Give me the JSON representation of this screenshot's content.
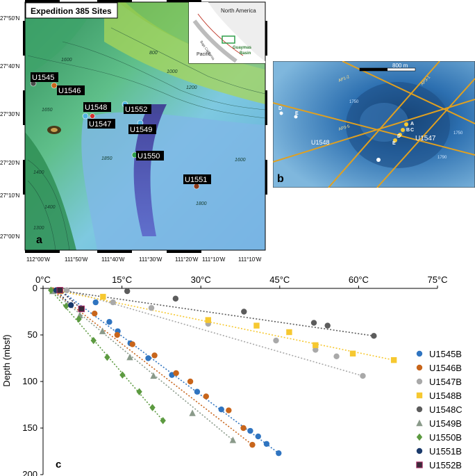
{
  "map_a": {
    "title": "Expedition 385 Sites",
    "panel_label": "a",
    "inset": {
      "region_label": "North America",
      "ocean_label": "Pacific",
      "basin_label_line1": "Guaymas",
      "basin_label_line2": "Basin",
      "state_label": "Baja California"
    },
    "lat_labels": [
      "27°50'N",
      "27°40'N",
      "27°30'N",
      "27°20'N",
      "27°10'N",
      "27°00'N"
    ],
    "lon_labels": [
      "112°00'W",
      "111°50'W",
      "111°40'W",
      "111°30'W",
      "111°20'W",
      "111°10'W",
      "111°10'W"
    ],
    "contour_labels": [
      "1600",
      "800",
      "1000",
      "1200",
      "1650",
      "1400",
      "1600",
      "1850",
      "1800",
      "1300",
      "1400"
    ],
    "sites": [
      {
        "name": "U1545",
        "color": "#4a4a4a"
      },
      {
        "name": "U1546",
        "color": "#c8651b"
      },
      {
        "name": "U1548",
        "color": "#f4c430"
      },
      {
        "name": "U1547",
        "color": "#d32f2f"
      },
      {
        "name": "U1552",
        "color": "#4fb3e0"
      },
      {
        "name": "U1549",
        "color": "#4fb3e0"
      },
      {
        "name": "U1550",
        "color": "#2e9e4a"
      },
      {
        "name": "U1551",
        "color": "#8b3a1a"
      }
    ]
  },
  "map_b": {
    "panel_label": "b",
    "scale_label": "800 m",
    "site_labels": [
      "U1548",
      "U1547"
    ],
    "point_labels": [
      "A",
      "B",
      "C",
      "D",
      "E",
      "D",
      "E"
    ],
    "line_labels": [
      "AP1-2",
      "AP3-5",
      "AP3-1"
    ],
    "contour_labels": [
      "1750",
      "1790",
      "1750"
    ]
  },
  "chart_data": {
    "type": "scatter",
    "panel_label": "c",
    "title": "",
    "xlabel": "",
    "ylabel": "Depth (mbsf)",
    "xlim": [
      0,
      75
    ],
    "ylim": [
      0,
      200
    ],
    "y_inverted": true,
    "x_axis_position": "top",
    "x_tick_labels": [
      "0°C",
      "15°C",
      "30°C",
      "45°C",
      "60°C",
      "75°C"
    ],
    "x_ticks": [
      0,
      15,
      30,
      45,
      60,
      75
    ],
    "y_ticks": [
      0,
      50,
      100,
      150,
      200
    ],
    "y_tick_labels": [
      "0",
      "50",
      "100",
      "150",
      "200"
    ],
    "legend_position": "right",
    "series": [
      {
        "name": "U1545B",
        "color": "#2f74c0",
        "marker": "circle",
        "points": [
          [
            3.3,
            2
          ],
          [
            10,
            15
          ],
          [
            12.6,
            36
          ],
          [
            14.2,
            46
          ],
          [
            16.6,
            59
          ],
          [
            20,
            75
          ],
          [
            24.5,
            93
          ],
          [
            29.3,
            111
          ],
          [
            33.9,
            130
          ],
          [
            39.4,
            153
          ],
          [
            40.9,
            159
          ],
          [
            42.5,
            167
          ],
          [
            44.8,
            177
          ]
        ]
      },
      {
        "name": "U1546B",
        "color": "#c8651b",
        "marker": "circle",
        "points": [
          [
            1.8,
            2
          ],
          [
            9.8,
            27
          ],
          [
            14.1,
            50
          ],
          [
            17,
            60
          ],
          [
            21.2,
            72
          ],
          [
            25.3,
            91
          ],
          [
            28,
            100
          ],
          [
            31,
            116
          ],
          [
            35.3,
            131
          ],
          [
            38.1,
            150
          ],
          [
            39.8,
            168
          ]
        ]
      },
      {
        "name": "U1547B",
        "color": "#a9a9a9",
        "marker": "circle",
        "points": [
          [
            4.5,
            2
          ],
          [
            13.3,
            15
          ],
          [
            20.6,
            21
          ],
          [
            31.4,
            38
          ],
          [
            44.3,
            56
          ],
          [
            51.8,
            66
          ],
          [
            55.8,
            73
          ],
          [
            60.8,
            94
          ]
        ]
      },
      {
        "name": "U1548B",
        "color": "#f6c830",
        "marker": "square",
        "points": [
          [
            3.3,
            3
          ],
          [
            11.4,
            9
          ],
          [
            31.4,
            34
          ],
          [
            40.6,
            40
          ],
          [
            46.8,
            47
          ],
          [
            51.8,
            61
          ],
          [
            58.9,
            70
          ],
          [
            66.7,
            77
          ]
        ]
      },
      {
        "name": "U1548C",
        "color": "#5c5c5c",
        "marker": "circle",
        "points": [
          [
            2.8,
            2
          ],
          [
            16,
            3
          ],
          [
            25.2,
            11
          ],
          [
            38.2,
            25
          ],
          [
            51.5,
            37
          ],
          [
            54.1,
            40
          ],
          [
            62.9,
            51
          ]
        ]
      },
      {
        "name": "U1549B",
        "color": "#8a9a8a",
        "marker": "triangle",
        "points": [
          [
            1.8,
            3
          ],
          [
            7,
            29
          ],
          [
            11.3,
            46
          ],
          [
            16.5,
            74
          ],
          [
            21,
            94
          ],
          [
            28.4,
            134
          ],
          [
            36.1,
            163
          ]
        ]
      },
      {
        "name": "U1550B",
        "color": "#5c9a40",
        "marker": "diamond",
        "points": [
          [
            1.5,
            2
          ],
          [
            4.4,
            19
          ],
          [
            6.8,
            33
          ],
          [
            9.6,
            56
          ],
          [
            12.2,
            74
          ],
          [
            15.1,
            93
          ],
          [
            18.3,
            111
          ],
          [
            20.8,
            128
          ],
          [
            22.8,
            142
          ]
        ]
      },
      {
        "name": "U1551B",
        "color": "#1b3a6b",
        "marker": "circle",
        "points": [
          [
            2.5,
            2
          ],
          [
            5.3,
            18
          ]
        ]
      },
      {
        "name": "U1552B",
        "color": "#3b2a3a",
        "marker": "square",
        "points": [
          [
            3.2,
            2
          ],
          [
            7.3,
            22
          ]
        ]
      }
    ]
  }
}
